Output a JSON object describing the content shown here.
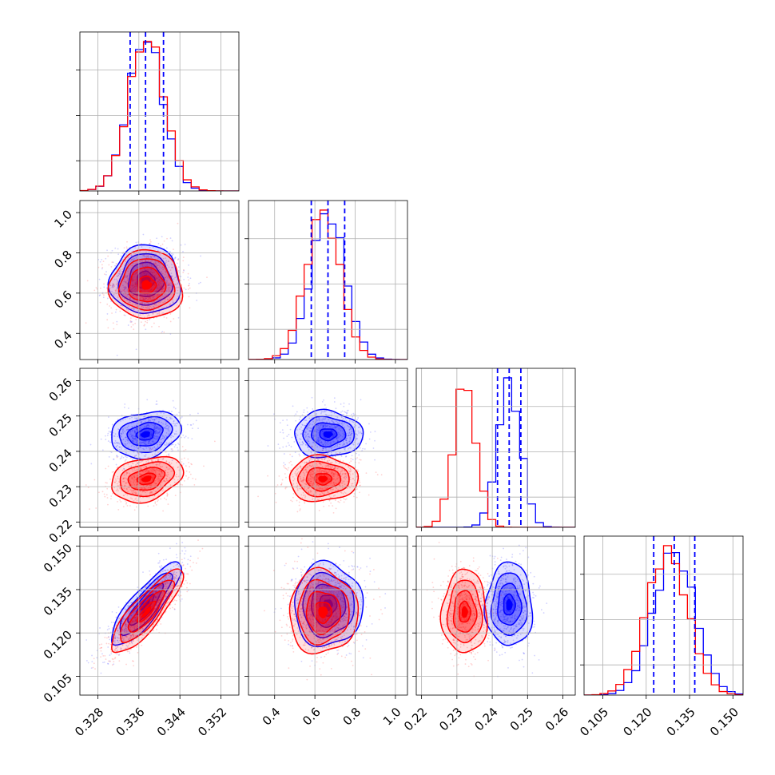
{
  "chart_data": {
    "type": "corner",
    "title": "",
    "parameters": [
      {
        "range": [
          0.3245,
          0.3555
        ],
        "ticks": [
          "0.328",
          "0.336",
          "0.344",
          "0.352"
        ],
        "tick_values": [
          0.328,
          0.336,
          0.344,
          0.352
        ]
      },
      {
        "range": [
          0.27,
          1.06
        ],
        "ticks": [
          "0.4",
          "0.6",
          "0.8",
          "1.0"
        ],
        "tick_values": [
          0.4,
          0.6,
          0.8,
          1.0
        ]
      },
      {
        "range": [
          0.2185,
          0.2635
        ],
        "ticks": [
          "0.22",
          "0.23",
          "0.24",
          "0.25",
          "0.26"
        ],
        "tick_values": [
          0.22,
          0.23,
          0.24,
          0.25,
          0.26
        ]
      },
      {
        "range": [
          0.0985,
          0.1535
        ],
        "ticks": [
          "0.105",
          "0.120",
          "0.135",
          "0.150"
        ],
        "tick_values": [
          0.105,
          0.12,
          0.135,
          0.15
        ]
      }
    ],
    "series": [
      {
        "color": "#0000ff",
        "means": [
          0.3373,
          0.665,
          0.2448,
          0.1297
        ],
        "sigmas": [
          0.0034,
          0.085,
          0.0033,
          0.0072
        ],
        "corr": [
          [
            1,
            0,
            0.2,
            0.85
          ],
          [
            0,
            1,
            0,
            0
          ],
          [
            0.2,
            0,
            1,
            0
          ],
          [
            0.85,
            0,
            0,
            1
          ]
        ],
        "quantiles": [
          [
            0.3343,
            0.3373,
            0.3408
          ],
          [
            0.582,
            0.665,
            0.748
          ],
          [
            0.2415,
            0.2448,
            0.2481
          ],
          [
            0.1226,
            0.1297,
            0.1368
          ]
        ]
      },
      {
        "color": "#ff0000",
        "means": [
          0.3375,
          0.64,
          0.2322,
          0.1272
        ],
        "sigmas": [
          0.0035,
          0.085,
          0.0032,
          0.0072
        ],
        "corr": [
          [
            1,
            0,
            0.3,
            0.85
          ],
          [
            0,
            1,
            0,
            0
          ],
          [
            0.3,
            0,
            1,
            0
          ],
          [
            0.85,
            0,
            0,
            1
          ]
        ]
      }
    ],
    "contour_levels_sigma": [
      0.5,
      1.0,
      1.5,
      2.0
    ],
    "grid": true,
    "quantile_lines": "dashed, blue series, 16/50/84 percent",
    "legend": "none"
  }
}
